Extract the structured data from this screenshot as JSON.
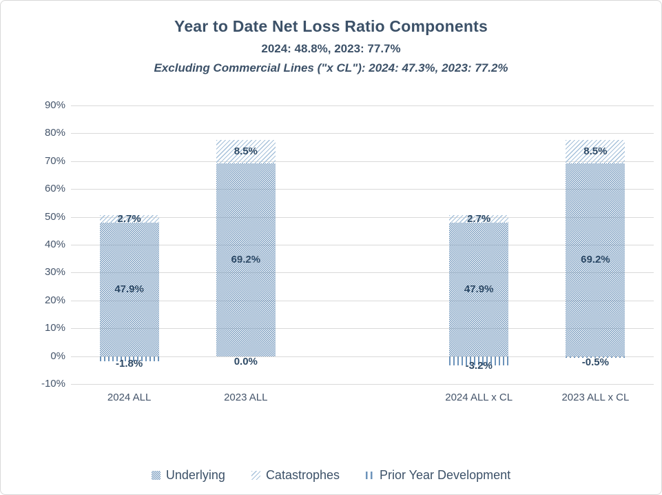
{
  "header": {
    "title": "Year to Date Net Loss Ratio Components",
    "subtitle": "2024: 48.8%, 2023: 77.7%",
    "subtitle_excl": "Excluding Commercial Lines (\"x CL\"): 2024: 47.3%, 2023: 77.2%"
  },
  "colors": {
    "pattern_blue": "#6C93BA",
    "hatch_blue": "#A6C1DA",
    "data_label_navy": "#2E4A66",
    "axis_text_slate": "#44546A",
    "title_navy": "#3C5168",
    "gridline_gray": "#D9D9D9",
    "chart_border_gray": "#D8D8D8"
  },
  "chart_data": {
    "type": "bar",
    "stacked": true,
    "grid": true,
    "legend_position": "bottom",
    "ylim": [
      -10,
      90
    ],
    "ytick_labels": [
      "90%",
      "80%",
      "70%",
      "60%",
      "50%",
      "40%",
      "30%",
      "20%",
      "10%",
      "0%",
      "-10%"
    ],
    "categories": [
      "2024 ALL",
      "2023 ALL",
      "",
      "2024 ALL x CL",
      "2023 ALL x CL"
    ],
    "series": [
      {
        "name": "Underlying",
        "pattern": "checker",
        "values": [
          47.9,
          69.2,
          null,
          47.9,
          69.2
        ],
        "labels": [
          "47.9%",
          "69.2%",
          "",
          "47.9%",
          "69.2%"
        ]
      },
      {
        "name": "Catastrophes",
        "pattern": "diagonal-hatch",
        "values": [
          2.7,
          8.5,
          null,
          2.7,
          8.5
        ],
        "labels": [
          "2.7%",
          "8.5%",
          "",
          "2.7%",
          "8.5%"
        ]
      },
      {
        "name": "Prior Year Development",
        "pattern": "vertical-lines",
        "values": [
          -1.8,
          0.0,
          null,
          -3.2,
          -0.5
        ],
        "labels": [
          "-1.8%",
          "0.0%",
          "",
          "-3.2%",
          "-0.5%"
        ]
      }
    ]
  }
}
